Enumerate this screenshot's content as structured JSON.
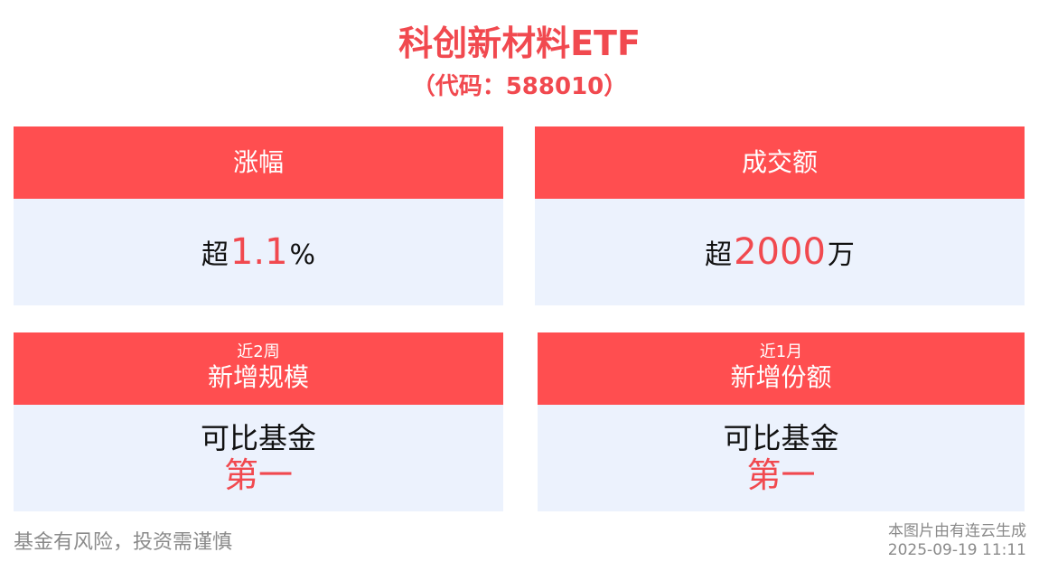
{
  "header": {
    "title": "科创新材料ETF",
    "code": "（代码：588010）"
  },
  "cards": [
    {
      "label": "涨幅",
      "prefix": "超",
      "value": "1.1",
      "unit": "%"
    },
    {
      "label": "成交额",
      "prefix": "超",
      "value": "2000",
      "unit": "万"
    },
    {
      "period": "近2周",
      "label": "新增规模",
      "line1": "可比基金",
      "line2": "第一"
    },
    {
      "period": "近1月",
      "label": "新增份额",
      "line1": "可比基金",
      "line2": "第一"
    }
  ],
  "footer": {
    "disclaimer": "基金有风险，投资需谨慎",
    "generated_by": "本图片由有连云生成",
    "timestamp": "2025-09-19 11:11"
  },
  "colors": {
    "accent": "#ff4e50",
    "card_bg": "#ecf2fd"
  }
}
